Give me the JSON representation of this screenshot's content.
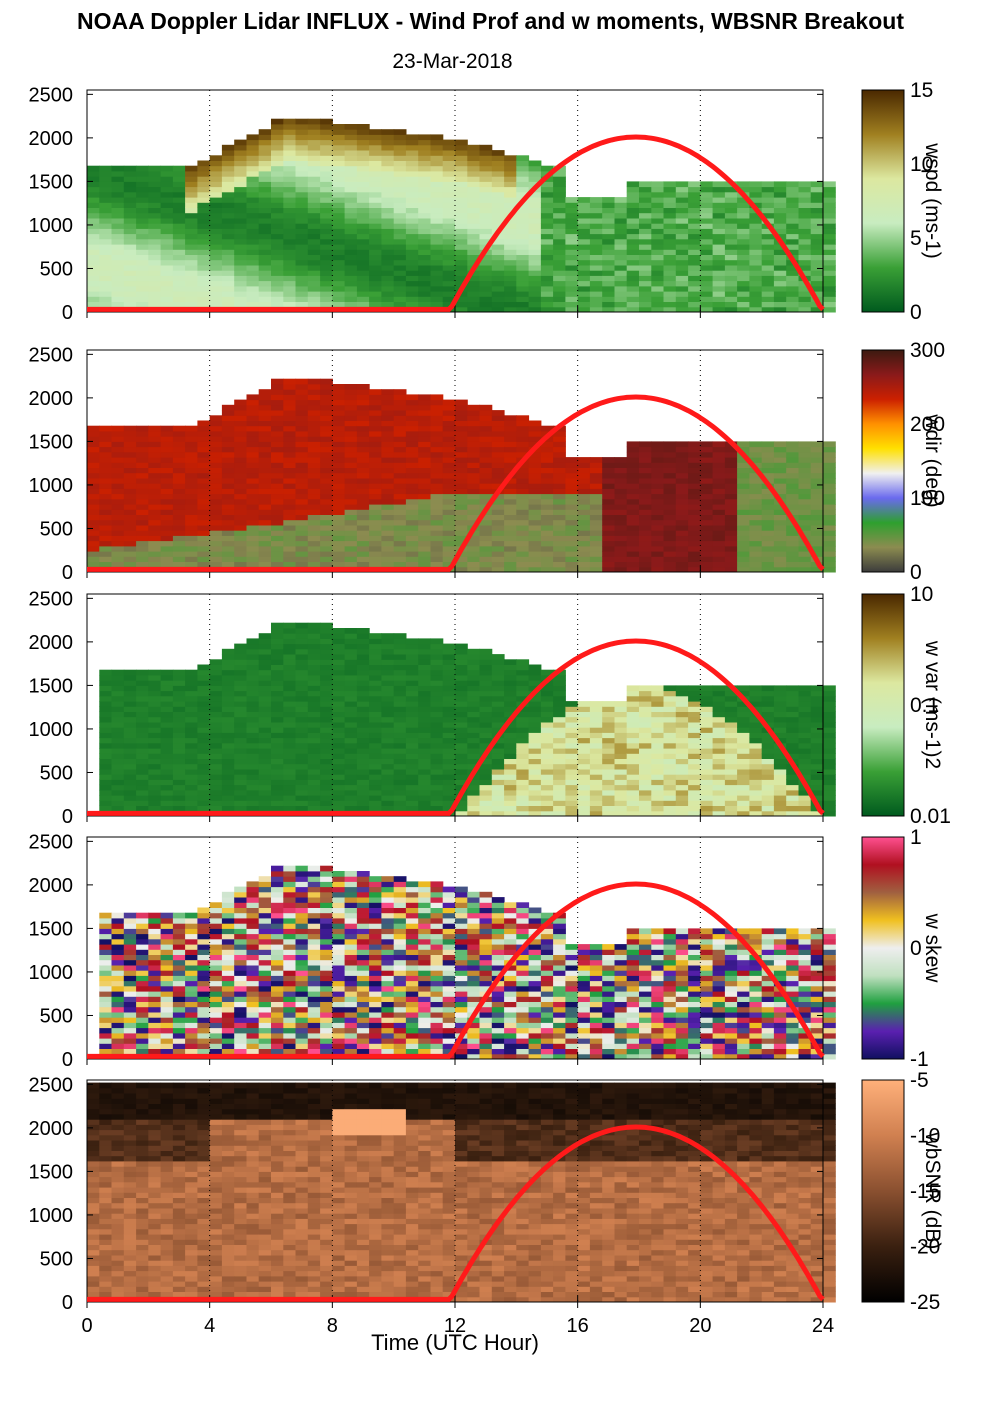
{
  "title": "NOAA Doppler Lidar INFLUX - Wind Prof and w moments, WBSNR Breakout",
  "date": "23-Mar-2018",
  "xlabel": "Time (UTC Hour)",
  "chart_data": {
    "type": "heatmap",
    "x_ticks": [
      0,
      4,
      8,
      12,
      16,
      20,
      24
    ],
    "xlim": [
      0,
      24
    ],
    "y_ticks": [
      0,
      500,
      1000,
      1500,
      2000,
      2500
    ],
    "ylim": [
      0,
      2550
    ],
    "sun_curve": {
      "color": "#ff1a1a",
      "start_hour": 11.8,
      "peak_hour": 17.9,
      "end_hour": 24,
      "peak_height": 2010,
      "baseline": 30
    },
    "panels": [
      {
        "label": "wspd (ms-1)",
        "cbar_ticks": [
          "0",
          "5",
          "10",
          "15"
        ],
        "colors": [
          "#005a1e",
          "#3aa036",
          "#c8ecc0",
          "#dce8a0",
          "#a08020",
          "#4a2800"
        ]
      },
      {
        "label": "wdir (deg)",
        "cbar_ticks": [
          "0",
          "100",
          "200",
          "300"
        ],
        "colors": [
          "#3c3c3c",
          "#8c8c50",
          "#2ea02e",
          "#6a6aee",
          "#f0f0f0",
          "#ffe000",
          "#ff9000",
          "#cc2000",
          "#8a1a1a",
          "#3c1a10"
        ]
      },
      {
        "label": "w var (ms-1)2",
        "cbar_ticks": [
          "0.01",
          "0.1",
          "10"
        ],
        "colors": [
          "#005a1e",
          "#3aa036",
          "#c8ecc0",
          "#dce8a0",
          "#a08020",
          "#4a2800"
        ]
      },
      {
        "label": "w skew",
        "cbar_ticks": [
          "-1",
          "0",
          "1"
        ],
        "colors": [
          "#101060",
          "#5a20b0",
          "#20a040",
          "#c0e0c0",
          "#eeeeee",
          "#f0c020",
          "#a06040",
          "#b01020",
          "#ff5090"
        ]
      },
      {
        "label": "wbSNR (dB)",
        "cbar_ticks": [
          "-25",
          "-20",
          "-15",
          "-10",
          "-5"
        ],
        "colors": [
          "#000000",
          "#3a2010",
          "#8a5030",
          "#d08050",
          "#ffb07a"
        ]
      }
    ]
  }
}
